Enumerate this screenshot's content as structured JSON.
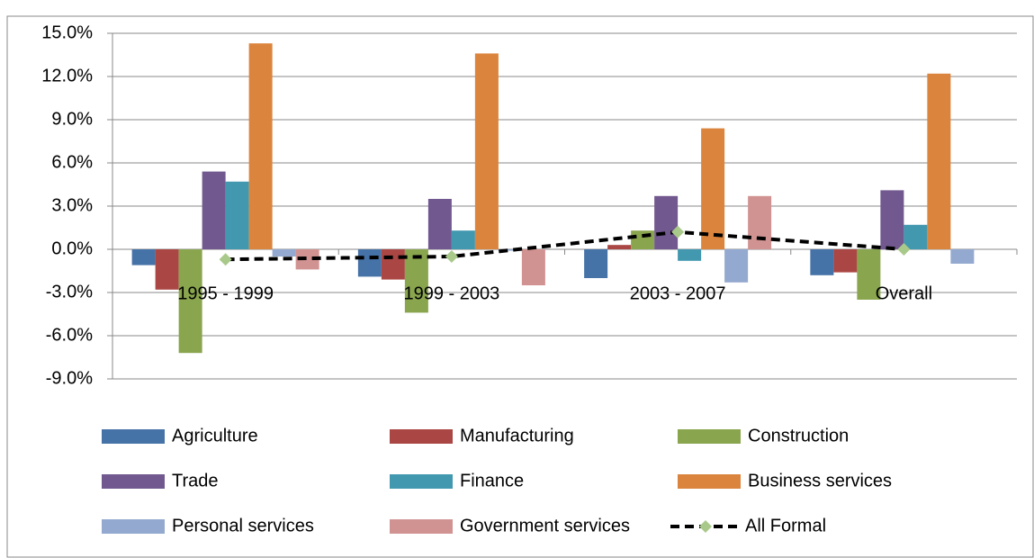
{
  "chart_data": {
    "type": "bar",
    "categories": [
      "1995 - 1999",
      "1999 - 2003",
      "2003 - 2007",
      "Overall"
    ],
    "series": [
      {
        "name": "Agriculture",
        "color": "#4572a7",
        "values": [
          -1.1,
          -1.9,
          -2.0,
          -1.8
        ]
      },
      {
        "name": "Manufacturing",
        "color": "#aa4643",
        "values": [
          -2.8,
          -2.1,
          0.3,
          -1.6
        ]
      },
      {
        "name": "Construction",
        "color": "#89a54e",
        "values": [
          -7.2,
          -4.4,
          1.3,
          -3.5
        ]
      },
      {
        "name": "Trade",
        "color": "#71588f",
        "values": [
          5.4,
          3.5,
          3.7,
          4.1
        ]
      },
      {
        "name": "Finance",
        "color": "#4198af",
        "values": [
          4.7,
          1.3,
          -0.8,
          1.7
        ]
      },
      {
        "name": "Business services",
        "color": "#db843d",
        "values": [
          14.3,
          13.6,
          8.4,
          12.2
        ]
      },
      {
        "name": "Personal services",
        "color": "#93a9cf",
        "values": [
          -0.5,
          -0.1,
          -2.3,
          -1.0
        ]
      },
      {
        "name": "Government services",
        "color": "#d19392",
        "values": [
          -1.4,
          -2.5,
          3.7,
          0.0
        ]
      },
      {
        "name": "All Formal",
        "type": "line",
        "color": "#000000",
        "marker_color": "#a9c98b",
        "dashed": true,
        "values": [
          -0.7,
          -0.5,
          1.2,
          0.0
        ]
      }
    ],
    "ylim": [
      -9,
      15
    ],
    "yticks": [
      {
        "value": -9,
        "label": "-9.0%"
      },
      {
        "value": -6,
        "label": "-6.0%"
      },
      {
        "value": -3,
        "label": "-3.0%"
      },
      {
        "value": 0,
        "label": "0.0%"
      },
      {
        "value": 3,
        "label": "3.0%"
      },
      {
        "value": 6,
        "label": "6.0%"
      },
      {
        "value": 9,
        "label": "9.0%"
      },
      {
        "value": 12,
        "label": "12.0%"
      },
      {
        "value": 15,
        "label": "15.0%"
      }
    ],
    "grid": true,
    "legend": "bottom"
  }
}
